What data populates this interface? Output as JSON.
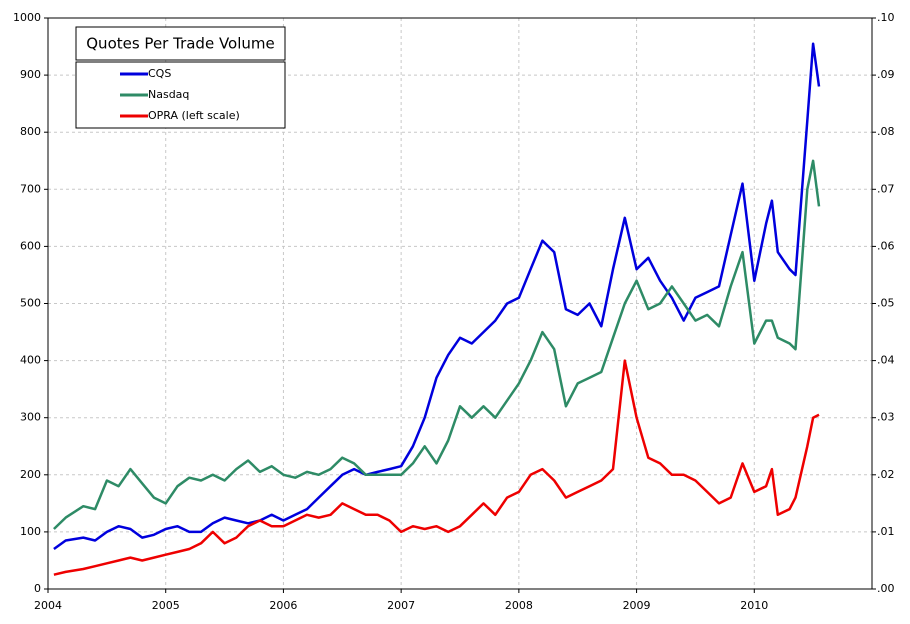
{
  "chart_data": {
    "type": "line",
    "title": "Quotes Per Trade Volume",
    "x": [
      2004.05,
      2004.15,
      2004.3,
      2004.4,
      2004.5,
      2004.6,
      2004.7,
      2004.8,
      2004.9,
      2005.0,
      2005.1,
      2005.2,
      2005.3,
      2005.4,
      2005.5,
      2005.6,
      2005.7,
      2005.8,
      2005.9,
      2006.0,
      2006.1,
      2006.2,
      2006.3,
      2006.4,
      2006.5,
      2006.6,
      2006.7,
      2006.8,
      2006.9,
      2007.0,
      2007.1,
      2007.2,
      2007.3,
      2007.4,
      2007.5,
      2007.6,
      2007.7,
      2007.8,
      2007.9,
      2008.0,
      2008.1,
      2008.2,
      2008.3,
      2008.4,
      2008.5,
      2008.6,
      2008.7,
      2008.8,
      2008.9,
      2009.0,
      2009.1,
      2009.2,
      2009.3,
      2009.4,
      2009.5,
      2009.6,
      2009.7,
      2009.8,
      2009.9,
      2010.0,
      2010.1,
      2010.15,
      2010.2,
      2010.3,
      2010.35,
      2010.45,
      2010.5,
      2010.55
    ],
    "series": [
      {
        "name": "CQS",
        "color": "#0000dd",
        "axis": "y2",
        "values": [
          0.007,
          0.0085,
          0.009,
          0.0085,
          0.01,
          0.011,
          0.0105,
          0.009,
          0.0095,
          0.0105,
          0.011,
          0.01,
          0.01,
          0.0115,
          0.0125,
          0.012,
          0.0115,
          0.012,
          0.013,
          0.012,
          0.013,
          0.014,
          0.016,
          0.018,
          0.02,
          0.021,
          0.02,
          0.0205,
          0.021,
          0.0215,
          0.025,
          0.03,
          0.037,
          0.041,
          0.044,
          0.043,
          0.045,
          0.047,
          0.05,
          0.051,
          0.056,
          0.061,
          0.059,
          0.049,
          0.048,
          0.05,
          0.046,
          0.056,
          0.065,
          0.056,
          0.058,
          0.054,
          0.051,
          0.047,
          0.051,
          0.052,
          0.053,
          0.062,
          0.071,
          0.054,
          0.064,
          0.068,
          0.059,
          0.056,
          0.055,
          0.082,
          0.0955,
          0.088
        ]
      },
      {
        "name": "Nasdaq",
        "color": "#2e8b66",
        "axis": "y2",
        "values": [
          0.0105,
          0.0125,
          0.0145,
          0.014,
          0.019,
          0.018,
          0.021,
          0.0185,
          0.016,
          0.015,
          0.018,
          0.0195,
          0.019,
          0.02,
          0.019,
          0.021,
          0.0225,
          0.0205,
          0.0215,
          0.02,
          0.0195,
          0.0205,
          0.02,
          0.021,
          0.023,
          0.022,
          0.02,
          0.02,
          0.02,
          0.02,
          0.022,
          0.025,
          0.022,
          0.026,
          0.032,
          0.03,
          0.032,
          0.03,
          0.033,
          0.036,
          0.04,
          0.045,
          0.042,
          0.032,
          0.036,
          0.037,
          0.038,
          0.044,
          0.05,
          0.054,
          0.049,
          0.05,
          0.053,
          0.05,
          0.047,
          0.048,
          0.046,
          0.053,
          0.059,
          0.043,
          0.047,
          0.047,
          0.044,
          0.043,
          0.042,
          0.07,
          0.075,
          0.067
        ]
      },
      {
        "name": "OPRA (left scale)",
        "color": "#ee0000",
        "values": [
          25,
          30,
          35,
          40,
          45,
          50,
          55,
          50,
          55,
          60,
          65,
          70,
          80,
          100,
          80,
          90,
          110,
          120,
          110,
          110,
          120,
          130,
          125,
          130,
          150,
          140,
          130,
          130,
          120,
          100,
          110,
          105,
          110,
          100,
          110,
          130,
          150,
          130,
          160,
          170,
          200,
          210,
          190,
          160,
          170,
          180,
          190,
          210,
          400,
          300,
          230,
          220,
          200,
          200,
          190,
          170,
          150,
          160,
          220,
          170,
          180,
          210,
          130,
          140,
          160,
          250,
          300,
          305
        ]
      }
    ],
    "xlim": [
      2004,
      2011
    ],
    "xticks": [
      2004,
      2005,
      2006,
      2007,
      2008,
      2009,
      2010
    ],
    "ylim": [
      0,
      1000
    ],
    "yticks": [
      0,
      100,
      200,
      300,
      400,
      500,
      600,
      700,
      800,
      900,
      1000
    ],
    "y2lim": [
      0,
      0.1
    ],
    "y2ticks": [
      {
        "value": 0,
        "label": ".00"
      },
      {
        "value": 0.01,
        "label": ".01"
      },
      {
        "value": 0.02,
        "label": ".02"
      },
      {
        "value": 0.03,
        "label": ".03"
      },
      {
        "value": 0.04,
        "label": ".04"
      },
      {
        "value": 0.05,
        "label": ".05"
      },
      {
        "value": 0.06,
        "label": ".06"
      },
      {
        "value": 0.07,
        "label": ".07"
      },
      {
        "value": 0.08,
        "label": ".08"
      },
      {
        "value": 0.09,
        "label": ".09"
      },
      {
        "value": 0.1,
        "label": ".10"
      }
    ],
    "grid": true,
    "legend": "top-left"
  }
}
